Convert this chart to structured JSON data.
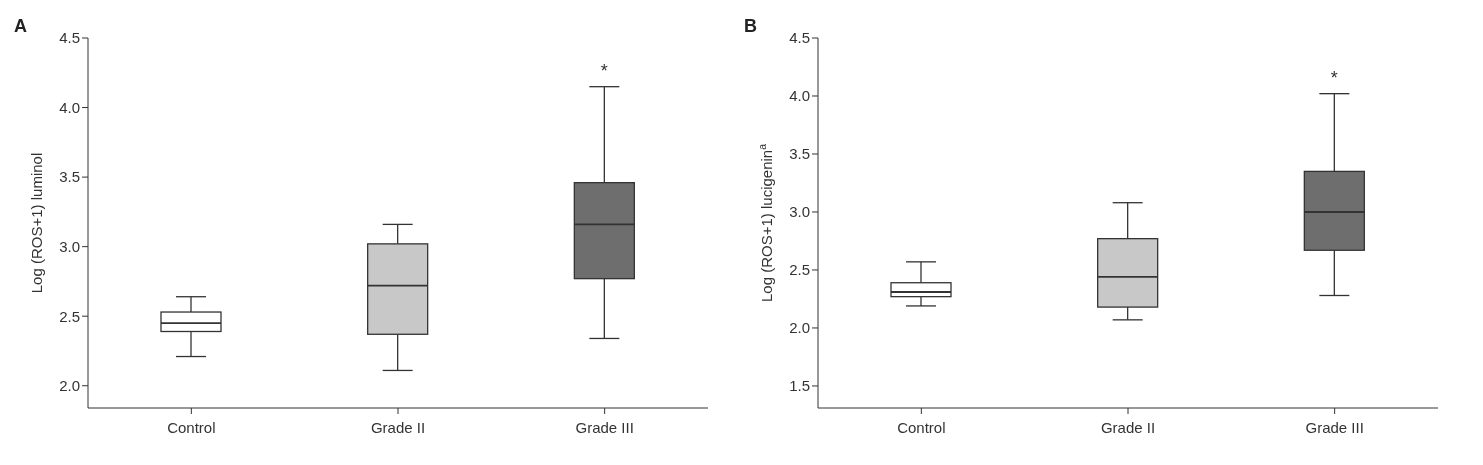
{
  "chart_data": [
    {
      "type": "box",
      "title": "A",
      "ylabel": "Log (ROS+1) luminol",
      "categories": [
        "Control",
        "Grade II",
        "Grade III"
      ],
      "colors": [
        "#ffffff",
        "#c8c8c8",
        "#6e6e6e"
      ],
      "boxes": [
        {
          "low": 2.21,
          "q1": 2.39,
          "median": 2.45,
          "q3": 2.53,
          "high": 2.64
        },
        {
          "low": 2.11,
          "q1": 2.37,
          "median": 2.72,
          "q3": 3.02,
          "high": 3.16
        },
        {
          "low": 2.34,
          "q1": 2.77,
          "median": 3.16,
          "q3": 3.46,
          "high": 4.15
        }
      ],
      "ylim": [
        1.84,
        4.5
      ],
      "yticks": [
        {
          "value": 2,
          "label": "2.0"
        },
        {
          "value": 2.5,
          "label": "2.5"
        },
        {
          "value": 3,
          "label": "3.0"
        },
        {
          "value": 3.5,
          "label": "3.5"
        },
        {
          "value": 4,
          "label": "4.0"
        },
        {
          "value": 4.5,
          "label": "4.5"
        }
      ],
      "grid": false,
      "legend": false,
      "annotations": [
        "*"
      ]
    },
    {
      "type": "box",
      "title": "B",
      "ylabel": "Log (ROS+1) lucigenin$^{a}$",
      "categories": [
        "Control",
        "Grade II",
        "Grade III"
      ],
      "colors": [
        "#ffffff",
        "#c8c8c8",
        "#6e6e6e"
      ],
      "boxes": [
        {
          "low": 2.19,
          "q1": 2.27,
          "median": 2.31,
          "q3": 2.39,
          "high": 2.57
        },
        {
          "low": 2.07,
          "q1": 2.18,
          "median": 2.44,
          "q3": 2.77,
          "high": 3.08
        },
        {
          "low": 2.28,
          "q1": 2.67,
          "median": 3.0,
          "q3": 3.35,
          "high": 4.02
        }
      ],
      "ylim": [
        1.31,
        4.5
      ],
      "yticks": [
        {
          "value": 1.5,
          "label": "1.5"
        },
        {
          "value": 2,
          "label": "2.0"
        },
        {
          "value": 2.5,
          "label": "2.5"
        },
        {
          "value": 3,
          "label": "3.0"
        },
        {
          "value": 3.5,
          "label": "3.5"
        },
        {
          "value": 4,
          "label": "4.0"
        },
        {
          "value": 4.5,
          "label": "4.5"
        }
      ],
      "grid": false,
      "legend": false,
      "annotations": [
        "*"
      ]
    }
  ]
}
